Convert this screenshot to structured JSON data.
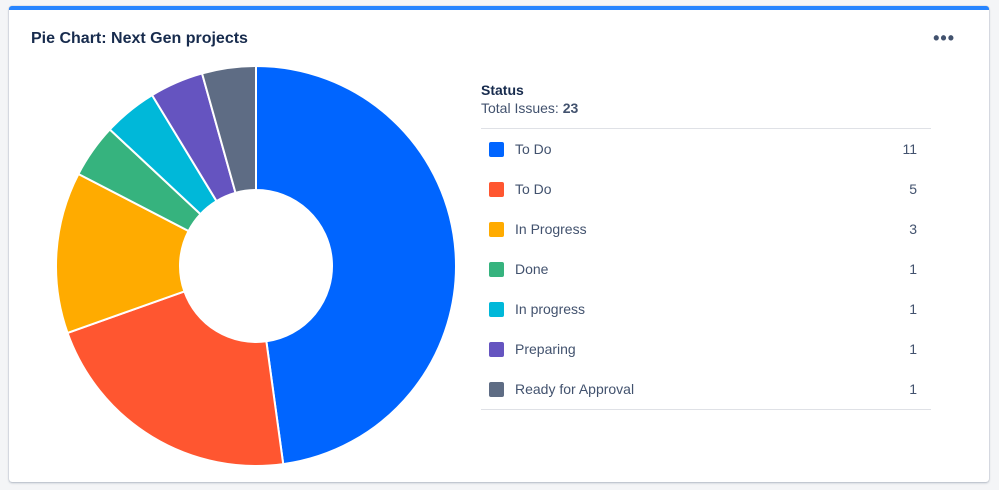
{
  "gadget": {
    "title": "Pie Chart: Next Gen projects",
    "menu_icon": "more-horizontal-icon",
    "accent": "#2684ff"
  },
  "legend": {
    "heading": "Status",
    "total_label": "Total Issues:",
    "total_value": "23"
  },
  "chart_data": {
    "type": "pie",
    "categories": [
      "To Do",
      "To Do",
      "In Progress",
      "Done",
      "In progress",
      "Preparing",
      "Ready for Approval"
    ],
    "values": [
      11,
      5,
      3,
      1,
      1,
      1,
      1
    ],
    "colors": [
      "#0065ff",
      "#ff5630",
      "#ffab00",
      "#36b37e",
      "#00b8d9",
      "#6554c0",
      "#5e6c84"
    ],
    "donut": true,
    "legend_position": "right"
  }
}
